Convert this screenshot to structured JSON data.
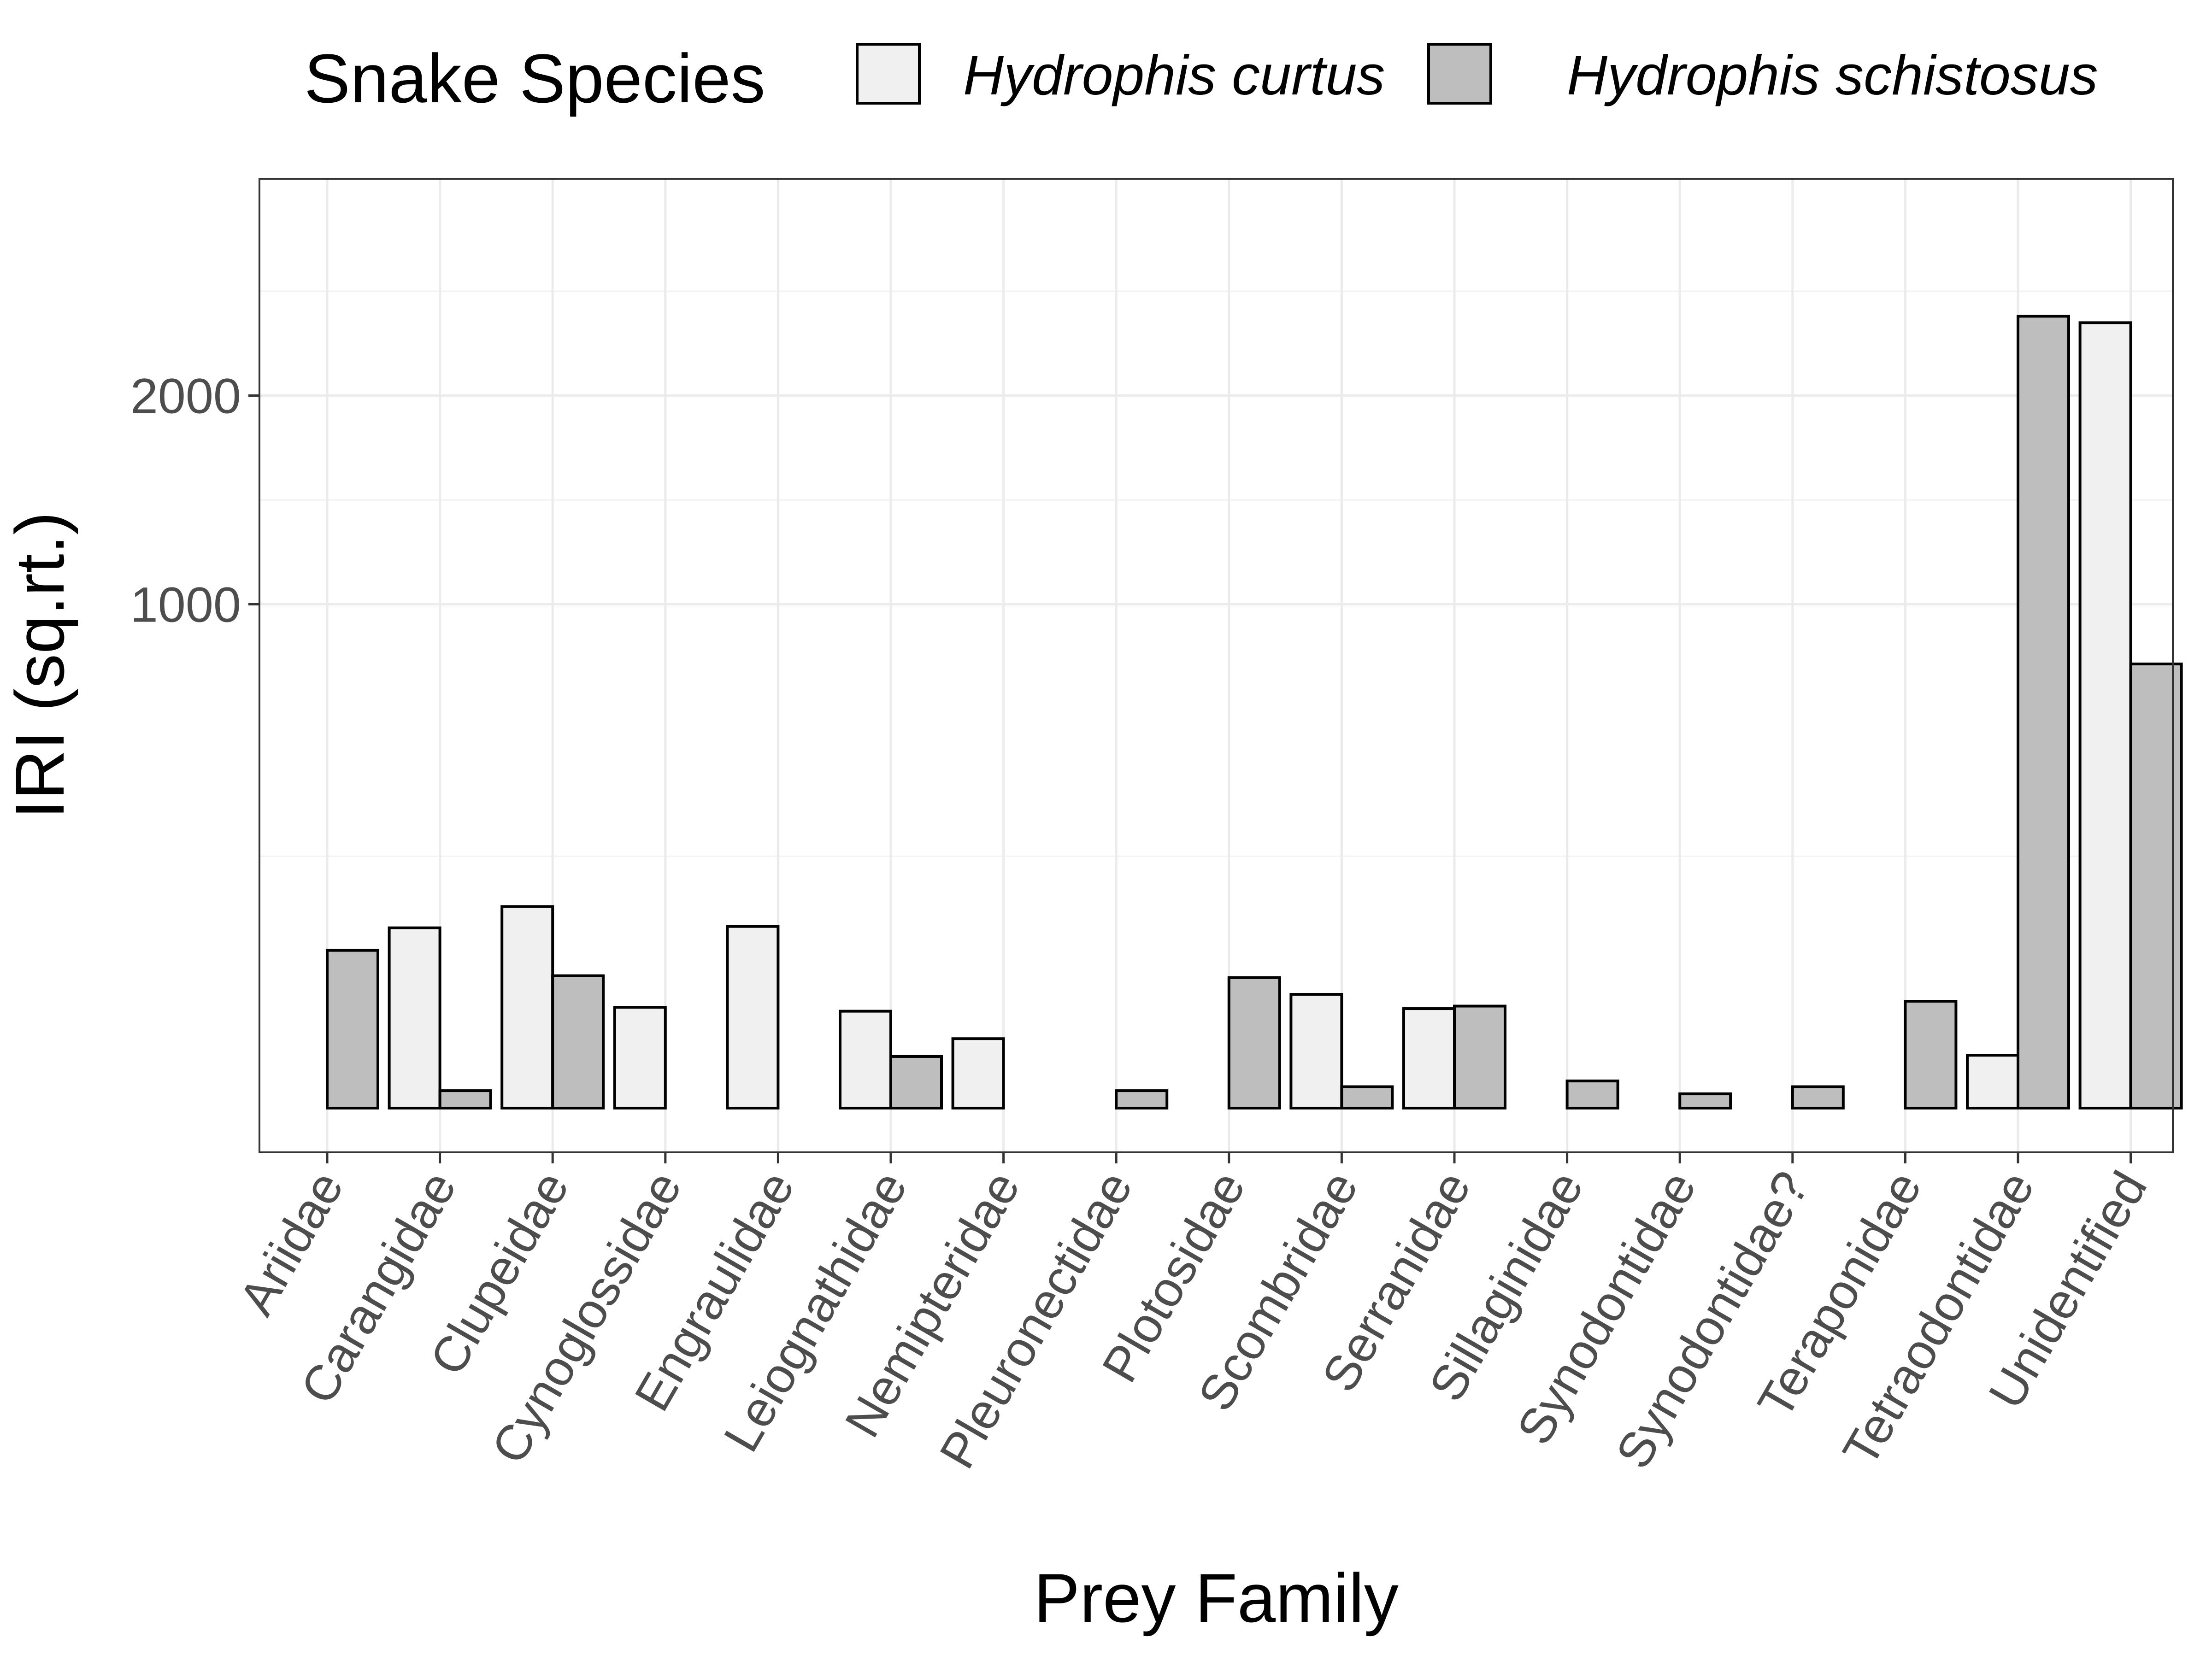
{
  "chart_data": {
    "type": "bar",
    "xlabel": "Prey Family",
    "ylabel": "IRI (sq.rt.)",
    "y_scale": "sqrt",
    "ylim": [
      0,
      2650
    ],
    "y_ticks": [
      1000,
      2000
    ],
    "grid": true,
    "legend": {
      "title": "Snake Species",
      "placement": "top"
    },
    "categories": [
      "Ariidae",
      "Carangidae",
      "Clupeidae",
      "Cynoglossidae",
      "Engraulidae",
      "Leiognathidae",
      "Nemipteridae",
      "Pleuronectidae",
      "Plotosidae",
      "Scombridae",
      "Serranidae",
      "Sillaginidae",
      "Synodontidae",
      "Synodontidae?",
      "Teraponidae",
      "Tetraodontidae",
      "Unidentified"
    ],
    "series": [
      {
        "name": "Hydrophis curtus",
        "color": "#f0f0f0",
        "values": [
          null,
          128,
          160,
          40,
          130,
          37,
          19,
          null,
          null,
          51,
          39,
          null,
          null,
          null,
          null,
          11,
          2430
        ]
      },
      {
        "name": "Hydrophis schistosus",
        "color": "#bebebe",
        "values": [
          98,
          1.2,
          69,
          null,
          null,
          10.5,
          null,
          1.2,
          67,
          1.8,
          41,
          2.9,
          0.8,
          1.8,
          45,
          2470,
          777
        ]
      }
    ]
  }
}
